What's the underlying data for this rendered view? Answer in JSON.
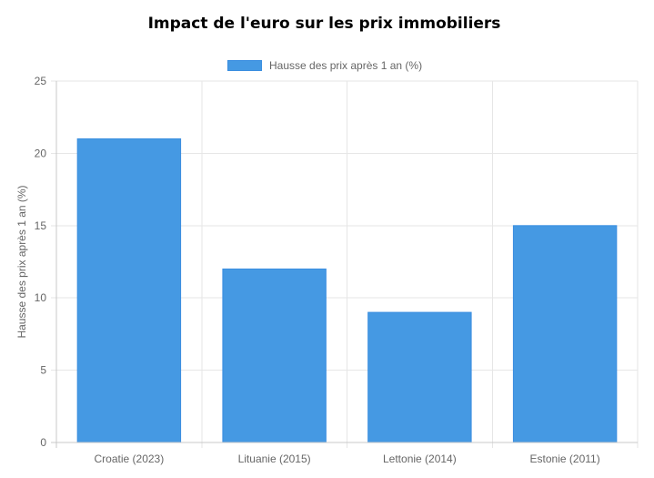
{
  "chart_data": {
    "type": "bar",
    "title": "Impact de l'euro sur les prix immobiliers",
    "categories": [
      "Croatie (2023)",
      "Lituanie (2015)",
      "Lettonie (2014)",
      "Estonie (2011)"
    ],
    "series": [
      {
        "name": "Hausse des prix après 1 an (%)",
        "values": [
          21,
          12,
          9,
          15
        ],
        "color": "#4599e3"
      }
    ],
    "xlabel": "",
    "ylabel": "Hausse des prix après 1 an (%)",
    "ylim": [
      0,
      25
    ],
    "yticks": [
      "0",
      "5",
      "10",
      "15",
      "20",
      "25"
    ],
    "grid": true,
    "legend_position": "top-center"
  }
}
